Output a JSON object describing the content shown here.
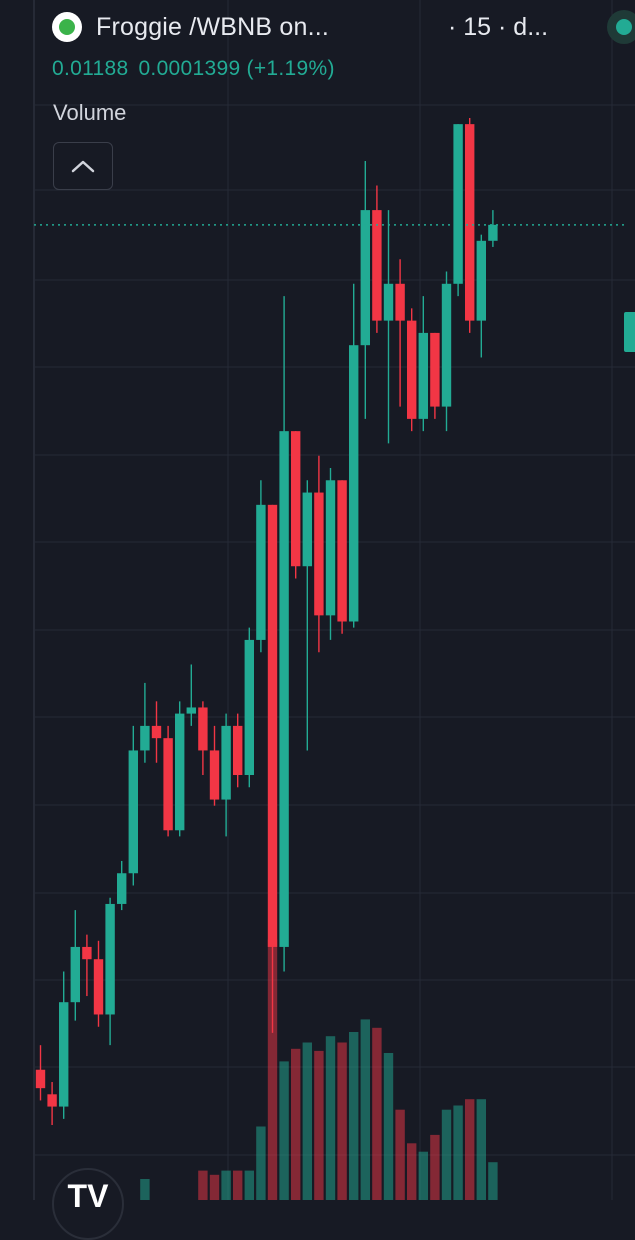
{
  "header": {
    "pair_title": "Froggie /WBNB on...",
    "interval": "· 15 · d...",
    "price": "0.01188",
    "change": "0.0001399 (+1.19%)"
  },
  "volume_pane": {
    "label": "Volume"
  },
  "colors": {
    "up": "#22ab94",
    "down": "#f23645",
    "background": "#171a24",
    "grid": "#262a36"
  },
  "icons": {
    "pair": "frog-coin-icon",
    "status": "market-open-dot-icon",
    "collapse": "chevron-up-icon",
    "logo": "tradingview-logo-icon"
  },
  "chart_data": {
    "type": "candlestick",
    "grid": true,
    "last_close": 0.01188,
    "candles": [
      {
        "o": 0.005,
        "h": 0.0052,
        "l": 0.00475,
        "c": 0.00485
      },
      {
        "o": 0.0048,
        "h": 0.0049,
        "l": 0.00455,
        "c": 0.0047
      },
      {
        "o": 0.0047,
        "h": 0.0058,
        "l": 0.0046,
        "c": 0.00555
      },
      {
        "o": 0.00555,
        "h": 0.0063,
        "l": 0.0054,
        "c": 0.006
      },
      {
        "o": 0.006,
        "h": 0.0061,
        "l": 0.0056,
        "c": 0.0059
      },
      {
        "o": 0.0059,
        "h": 0.00605,
        "l": 0.00535,
        "c": 0.00545
      },
      {
        "o": 0.00545,
        "h": 0.0064,
        "l": 0.0052,
        "c": 0.00635
      },
      {
        "o": 0.00635,
        "h": 0.0067,
        "l": 0.0063,
        "c": 0.0066
      },
      {
        "o": 0.0066,
        "h": 0.0078,
        "l": 0.0065,
        "c": 0.0076
      },
      {
        "o": 0.0076,
        "h": 0.00815,
        "l": 0.0075,
        "c": 0.0078
      },
      {
        "o": 0.0078,
        "h": 0.008,
        "l": 0.0075,
        "c": 0.0077
      },
      {
        "o": 0.0077,
        "h": 0.0078,
        "l": 0.0069,
        "c": 0.00695
      },
      {
        "o": 0.00695,
        "h": 0.008,
        "l": 0.0069,
        "c": 0.0079
      },
      {
        "o": 0.0079,
        "h": 0.0083,
        "l": 0.0078,
        "c": 0.00795
      },
      {
        "o": 0.00795,
        "h": 0.008,
        "l": 0.0074,
        "c": 0.0076
      },
      {
        "o": 0.0076,
        "h": 0.0078,
        "l": 0.00715,
        "c": 0.0072
      },
      {
        "o": 0.0072,
        "h": 0.0079,
        "l": 0.0069,
        "c": 0.0078
      },
      {
        "o": 0.0078,
        "h": 0.0079,
        "l": 0.0073,
        "c": 0.0074
      },
      {
        "o": 0.0074,
        "h": 0.0086,
        "l": 0.0073,
        "c": 0.0085
      },
      {
        "o": 0.0085,
        "h": 0.0098,
        "l": 0.0084,
        "c": 0.0096
      },
      {
        "o": 0.0096,
        "h": 0.0096,
        "l": 0.0053,
        "c": 0.006
      },
      {
        "o": 0.006,
        "h": 0.0113,
        "l": 0.0058,
        "c": 0.0102
      },
      {
        "o": 0.0102,
        "h": 0.0102,
        "l": 0.009,
        "c": 0.0091
      },
      {
        "o": 0.0091,
        "h": 0.0098,
        "l": 0.0076,
        "c": 0.0097
      },
      {
        "o": 0.0097,
        "h": 0.01,
        "l": 0.0084,
        "c": 0.0087
      },
      {
        "o": 0.0087,
        "h": 0.0099,
        "l": 0.0085,
        "c": 0.0098
      },
      {
        "o": 0.0098,
        "h": 0.0098,
        "l": 0.00855,
        "c": 0.00865
      },
      {
        "o": 0.00865,
        "h": 0.0114,
        "l": 0.0086,
        "c": 0.0109
      },
      {
        "o": 0.0109,
        "h": 0.0124,
        "l": 0.0103,
        "c": 0.012
      },
      {
        "o": 0.012,
        "h": 0.0122,
        "l": 0.011,
        "c": 0.0111
      },
      {
        "o": 0.0111,
        "h": 0.012,
        "l": 0.0101,
        "c": 0.0114
      },
      {
        "o": 0.0114,
        "h": 0.0116,
        "l": 0.0104,
        "c": 0.0111
      },
      {
        "o": 0.0111,
        "h": 0.0112,
        "l": 0.0102,
        "c": 0.0103
      },
      {
        "o": 0.0103,
        "h": 0.0113,
        "l": 0.0102,
        "c": 0.011
      },
      {
        "o": 0.011,
        "h": 0.011,
        "l": 0.0103,
        "c": 0.0104
      },
      {
        "o": 0.0104,
        "h": 0.0115,
        "l": 0.0102,
        "c": 0.0114
      },
      {
        "o": 0.0114,
        "h": 0.0127,
        "l": 0.0113,
        "c": 0.0127
      },
      {
        "o": 0.0127,
        "h": 0.01275,
        "l": 0.011,
        "c": 0.0111
      },
      {
        "o": 0.0111,
        "h": 0.0118,
        "l": 0.0108,
        "c": 0.01175
      },
      {
        "o": 0.01175,
        "h": 0.012,
        "l": 0.0117,
        "c": 0.01188
      }
    ],
    "volumes": [
      0,
      0,
      0,
      0,
      0,
      0,
      0,
      0,
      0,
      0.1,
      0,
      0,
      0,
      0,
      0.14,
      0.12,
      0.14,
      0.14,
      0.14,
      0.35,
      1.24,
      0.66,
      0.72,
      0.75,
      0.71,
      0.78,
      0.75,
      0.8,
      0.86,
      0.82,
      0.7,
      0.43,
      0.27,
      0.23,
      0.31,
      0.43,
      0.45,
      0.48,
      0.48,
      0.18
    ]
  }
}
